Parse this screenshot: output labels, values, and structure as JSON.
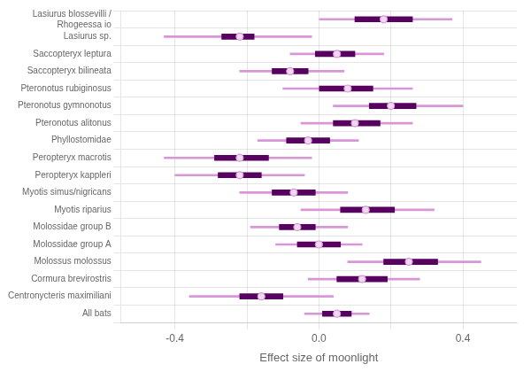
{
  "chart_data": {
    "type": "forest",
    "orientation": "horizontal",
    "xlabel": "Effect size of moonlight",
    "categories": [
      "Lasiurus blossevilli /\n    Rhogeessa io",
      "Lasiurus sp.",
      "Saccopteryx leptura",
      "Saccopteryx bilineata",
      "Pteronotus rubiginosus",
      "Pteronotus gymnonotus",
      "Pteronotus alitonus",
      "Phyllostomidae",
      "Peropteryx macrotis",
      "Peropteryx kappleri",
      "Myotis simus/nigricans",
      "Myotis riparius",
      "Molossidae group B",
      "Molossidae group A",
      "Molossus molossus",
      "Cormura brevirostris",
      "Centronycteris maximiliani",
      "All bats"
    ],
    "series": [
      {
        "type": "interval",
        "color": "#d896d8",
        "lo": [
          0.0,
          -0.43,
          -0.08,
          -0.22,
          -0.1,
          0.04,
          -0.05,
          -0.17,
          -0.43,
          -0.4,
          -0.22,
          -0.05,
          -0.19,
          -0.12,
          0.08,
          -0.03,
          -0.36,
          -0.04
        ],
        "hi": [
          0.37,
          -0.02,
          0.18,
          0.07,
          0.26,
          0.4,
          0.26,
          0.11,
          -0.02,
          -0.04,
          0.08,
          0.32,
          0.08,
          0.12,
          0.45,
          0.28,
          0.04,
          0.14
        ]
      },
      {
        "type": "interval",
        "color": "#580060",
        "lo": [
          0.1,
          -0.27,
          -0.01,
          -0.13,
          0.0,
          0.14,
          0.04,
          -0.09,
          -0.29,
          -0.28,
          -0.13,
          0.06,
          -0.11,
          -0.06,
          0.18,
          0.05,
          -0.22,
          0.01
        ],
        "hi": [
          0.26,
          -0.18,
          0.1,
          -0.03,
          0.15,
          0.27,
          0.17,
          0.03,
          -0.14,
          -0.16,
          -0.01,
          0.21,
          -0.01,
          0.06,
          0.33,
          0.19,
          -0.1,
          0.09
        ]
      },
      {
        "type": "scatter",
        "color": "#eddaed",
        "marker": "circle",
        "values": [
          0.18,
          -0.22,
          0.05,
          -0.08,
          0.08,
          0.2,
          0.1,
          -0.03,
          -0.22,
          -0.22,
          -0.07,
          0.13,
          -0.06,
          0.0,
          0.25,
          0.12,
          -0.16,
          0.05
        ]
      }
    ],
    "xlim": [
      -0.55,
      0.55
    ],
    "xticks": [
      -0.4,
      {
        "value": -0.2,
        "label": null
      },
      {
        "value": 0,
        "label": "0.0"
      },
      {
        "value": 0.2,
        "label": null
      },
      0.4
    ],
    "grid": true
  }
}
